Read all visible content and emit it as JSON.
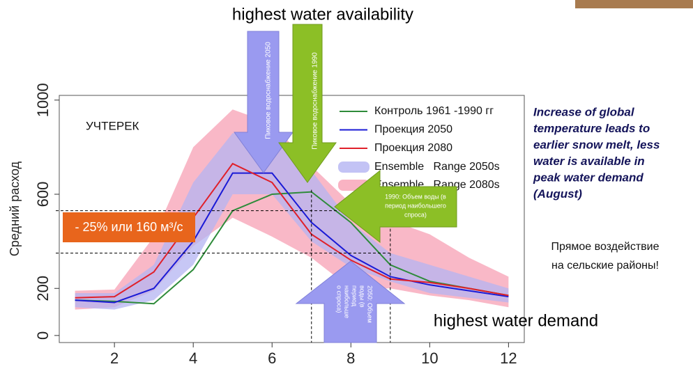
{
  "chart_data": {
    "type": "line",
    "title": "highest water availability",
    "subtitle": "highest water demand",
    "plot_label": "УЧТЕРЕК",
    "y_label": "Средний расход",
    "x": [
      1,
      2,
      3,
      4,
      5,
      6,
      7,
      8,
      9,
      10,
      11,
      12
    ],
    "xlim": [
      0.6,
      12.4
    ],
    "xticks": [
      2,
      4,
      6,
      8,
      10,
      12
    ],
    "ylim": [
      -30,
      1020
    ],
    "yticks": [
      0,
      200,
      600,
      1000
    ],
    "series": [
      {
        "name": "Контроль 1961 -1990 гг",
        "color": "#2e8b3a",
        "values": [
          150,
          145,
          135,
          280,
          530,
          600,
          610,
          480,
          300,
          230,
          200,
          170
        ]
      },
      {
        "name": "Проекция 2050",
        "color": "#1a1ad6",
        "values": [
          150,
          140,
          200,
          400,
          690,
          690,
          480,
          340,
          250,
          215,
          190,
          165
        ]
      },
      {
        "name": "Проекция 2080",
        "color": "#e0202a",
        "values": [
          160,
          165,
          270,
          500,
          730,
          650,
          430,
          320,
          240,
          225,
          200,
          170
        ]
      }
    ],
    "bands": [
      {
        "name": "Ensemble   Range 2080s",
        "color": "#f7a0b4",
        "lower": [
          110,
          120,
          190,
          380,
          500,
          420,
          330,
          200,
          200,
          170,
          150,
          120
        ],
        "upper": [
          190,
          195,
          420,
          800,
          960,
          900,
          720,
          560,
          490,
          430,
          330,
          250
        ]
      },
      {
        "name": "Ensemble   Range 2050s",
        "color": "#b4b4f2",
        "lower": [
          120,
          110,
          150,
          300,
          600,
          600,
          400,
          290,
          230,
          180,
          160,
          140
        ],
        "upper": [
          180,
          180,
          300,
          650,
          860,
          840,
          700,
          480,
          350,
          300,
          250,
          200
        ]
      }
    ],
    "reference_lines": {
      "y": [
        530,
        350
      ],
      "x": [
        7,
        9
      ]
    },
    "change_label": "- 25% или 160 м³/с",
    "arrows": {
      "peak_2050": "Пиковое водоснабжение 2050",
      "peak_1990": "Пиковое водоснабжение 1990",
      "volume_1990": [
        "1990: Объем воды (в",
        "период наибольшего",
        "спроса)"
      ],
      "volume_2050": [
        "2050: Объем",
        "воды (в",
        "период",
        "наибольше",
        "о спроса)"
      ]
    },
    "note": [
      "Increase of global",
      "temperature leads to",
      "earlier snow melt, less",
      "water is available in",
      "peak water demand",
      "(August)"
    ],
    "impact": [
      "Прямое воздействие",
      "на сельские районы!"
    ]
  }
}
